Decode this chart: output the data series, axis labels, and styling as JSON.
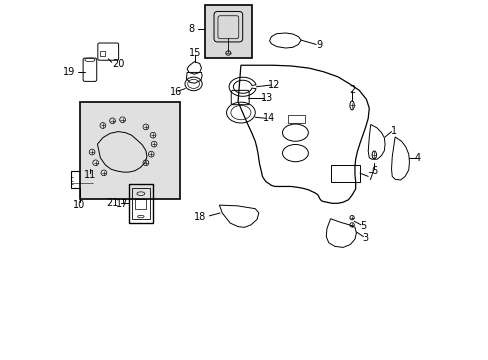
{
  "bg_color": "#ffffff",
  "line_color": "#000000",
  "text_color": "#000000",
  "font_size": 7,
  "box17_fill": "#e0e0e0",
  "box8_fill": "#d8d8d8"
}
